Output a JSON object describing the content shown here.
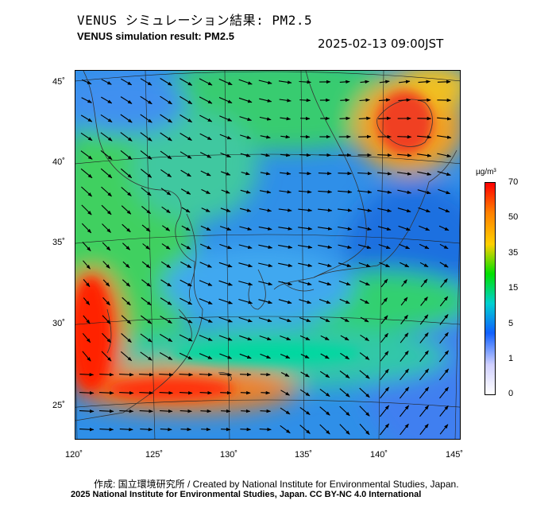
{
  "header": {
    "title_jp": "VENUS シミュレーション結果: PM2.5",
    "title_en": "VENUS simulation result: PM2.5",
    "timestamp": "2025-02-13 09:00JST"
  },
  "map": {
    "lat_labels": [
      "45˚",
      "40˚",
      "35˚",
      "30˚",
      "25˚"
    ],
    "lon_labels": [
      "120˚",
      "125˚",
      "130˚",
      "135˚",
      "140˚",
      "145˚"
    ],
    "lat_range": [
      23,
      46
    ],
    "lon_range": [
      120,
      145
    ]
  },
  "colorbar": {
    "unit": "µg/m³",
    "ticks": [
      "70",
      "50",
      "35",
      "15",
      "5",
      "1",
      "0"
    ],
    "colors": [
      "#ff0000",
      "#ff8000",
      "#ffd000",
      "#00e000",
      "#00d0d0",
      "#1060ff",
      "#d0d0ff",
      "#ffffff"
    ]
  },
  "footer": {
    "credit_line1": "作成: 国立環境研究所 / Created by National Institute for Environmental Studies, Japan.",
    "credit_line2": "2025 National Institute for Environmental Studies, Japan. CC BY-NC 4.0 International"
  }
}
